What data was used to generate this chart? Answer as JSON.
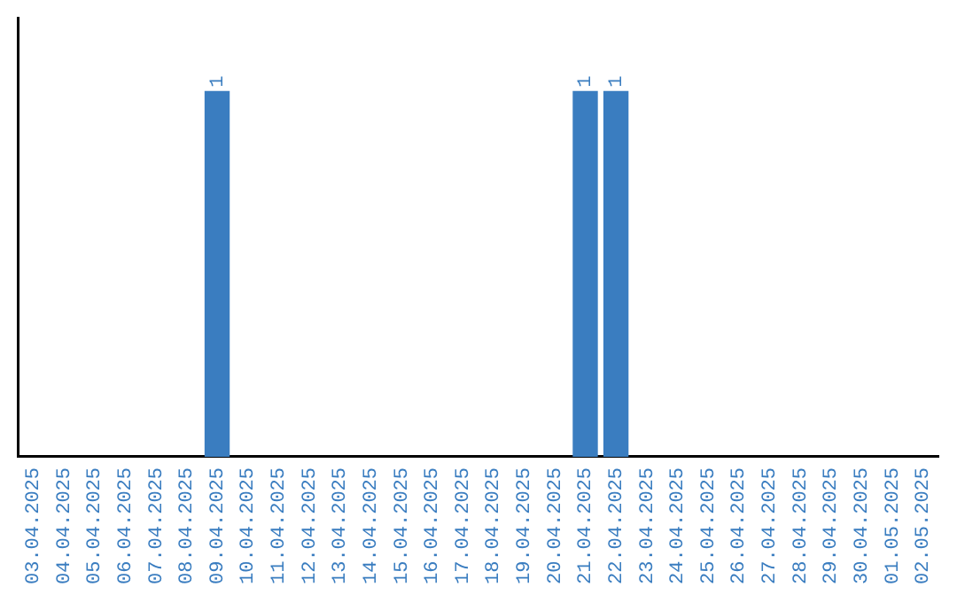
{
  "chart_data": {
    "type": "bar",
    "categories": [
      "03.04.2025",
      "04.04.2025",
      "05.04.2025",
      "06.04.2025",
      "07.04.2025",
      "08.04.2025",
      "09.04.2025",
      "10.04.2025",
      "11.04.2025",
      "12.04.2025",
      "13.04.2025",
      "14.04.2025",
      "15.04.2025",
      "16.04.2025",
      "17.04.2025",
      "18.04.2025",
      "19.04.2025",
      "20.04.2025",
      "21.04.2025",
      "22.04.2025",
      "23.04.2025",
      "24.04.2025",
      "25.04.2025",
      "26.04.2025",
      "27.04.2025",
      "28.04.2025",
      "29.04.2025",
      "30.04.2025",
      "01.05.2025",
      "02.05.2025"
    ],
    "values": [
      0,
      0,
      0,
      0,
      0,
      0,
      1,
      0,
      0,
      0,
      0,
      0,
      0,
      0,
      0,
      0,
      0,
      0,
      1,
      1,
      0,
      0,
      0,
      0,
      0,
      0,
      0,
      0,
      0,
      0
    ],
    "value_labels": [
      null,
      null,
      null,
      null,
      null,
      null,
      "1",
      null,
      null,
      null,
      null,
      null,
      null,
      null,
      null,
      null,
      null,
      null,
      "1",
      "1",
      null,
      null,
      null,
      null,
      null,
      null,
      null,
      null,
      null,
      null
    ],
    "color": "#3a7dc0",
    "grid": false,
    "legend": false
  }
}
